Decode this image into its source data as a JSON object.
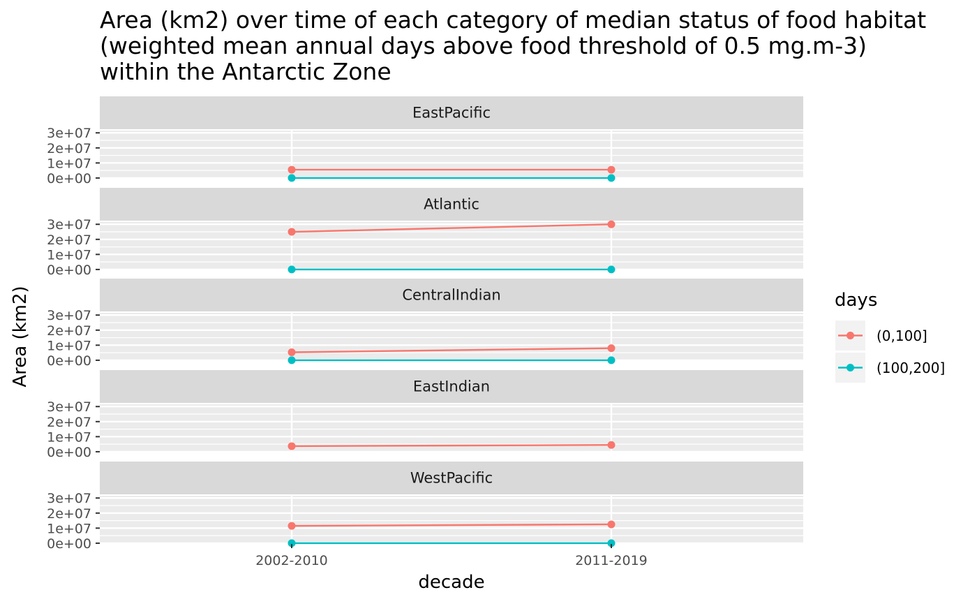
{
  "chart_data": {
    "type": "line",
    "title_lines": [
      "Area (km2) over time of each category of median status of food habitat",
      "(weighted mean annual days above food threshold of 0.5 mg.m-3)",
      "within the Antarctic Zone"
    ],
    "xlabel": "decade",
    "ylabel": "Area (km2)",
    "categories": [
      "2002-2010",
      "2011-2019"
    ],
    "y_ticks": [
      0,
      10000000,
      20000000,
      30000000
    ],
    "y_tick_labels": [
      "0e+00",
      "1e+07",
      "2e+07",
      "3e+07"
    ],
    "ylim": [
      -500000,
      31500000
    ],
    "legend": {
      "title": "days",
      "position": "right",
      "entries": [
        {
          "label": "(0,100]",
          "color": "#F8766D"
        },
        {
          "label": "(100,200]",
          "color": "#00BFC4"
        }
      ]
    },
    "grid": true,
    "panels": [
      {
        "name": "EastPacific",
        "series": [
          {
            "name": "(0,100]",
            "values": [
              5500000,
              5500000
            ]
          },
          {
            "name": "(100,200]",
            "values": [
              0,
              0
            ]
          }
        ]
      },
      {
        "name": "Atlantic",
        "series": [
          {
            "name": "(0,100]",
            "values": [
              25000000,
              30000000
            ]
          },
          {
            "name": "(100,200]",
            "values": [
              0,
              0
            ]
          }
        ]
      },
      {
        "name": "CentralIndian",
        "series": [
          {
            "name": "(0,100]",
            "values": [
              5300000,
              8000000
            ]
          },
          {
            "name": "(100,200]",
            "values": [
              0,
              0
            ]
          }
        ]
      },
      {
        "name": "EastIndian",
        "series": [
          {
            "name": "(0,100]",
            "values": [
              3700000,
              4500000
            ]
          }
        ]
      },
      {
        "name": "WestPacific",
        "series": [
          {
            "name": "(0,100]",
            "values": [
              11500000,
              12500000
            ]
          },
          {
            "name": "(100,200]",
            "values": [
              0,
              0
            ]
          }
        ]
      }
    ]
  }
}
